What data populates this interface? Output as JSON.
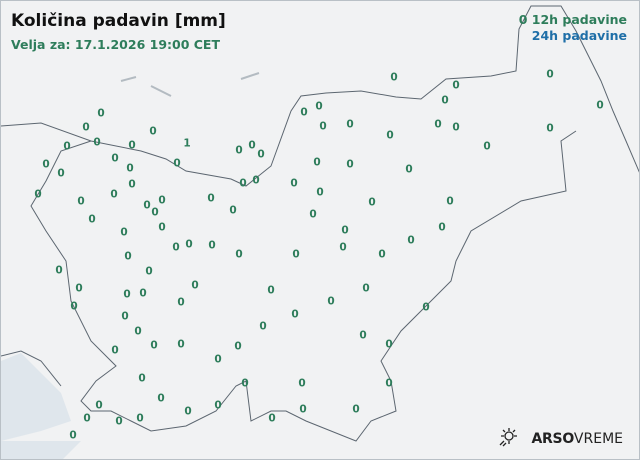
{
  "title": "Količina padavin [mm]",
  "valid_time": "Velja za: 17.1.2026 19:00 CET",
  "legend": {
    "sample_value": "0",
    "label_12h": "12h padavine",
    "label_24h": "24h padavine"
  },
  "colors": {
    "h12": "#2e7d5b",
    "h24": "#1f6fa8",
    "border": "#5c6670",
    "sea": "#dfe6ec"
  },
  "stations": [
    "0",
    "0",
    "0",
    "0",
    "0",
    "0",
    "0",
    "0",
    "0",
    "0",
    "0",
    "0",
    "0",
    "0",
    "0",
    "0",
    "1",
    "0",
    "0",
    "0",
    "0",
    "0",
    "0",
    "0",
    "0",
    "0",
    "0",
    "0",
    "0",
    "0",
    "0",
    "0",
    "0",
    "0",
    "0",
    "0",
    "0",
    "0",
    "0",
    "0",
    "0",
    "0",
    "0",
    "0",
    "0",
    "0",
    "0",
    "0",
    "0",
    "0",
    "0",
    "0",
    "0",
    "0",
    "0",
    "0",
    "0",
    "0",
    "0",
    "0",
    "0",
    "0",
    "0",
    "0",
    "0",
    "0",
    "0",
    "0",
    "0",
    "0",
    "0",
    "0",
    "0",
    "0",
    "0",
    "0",
    "0",
    "0",
    "0",
    "0",
    "0",
    "0",
    "0",
    "0",
    "0",
    "0",
    "0",
    "0",
    "0",
    "0",
    "0",
    "0",
    "0",
    "0",
    "0",
    "0",
    "0",
    "0",
    "0",
    "0"
  ],
  "logo": {
    "brand": "ARSO",
    "product": "VREME",
    "icon": "sun-rain-icon"
  }
}
